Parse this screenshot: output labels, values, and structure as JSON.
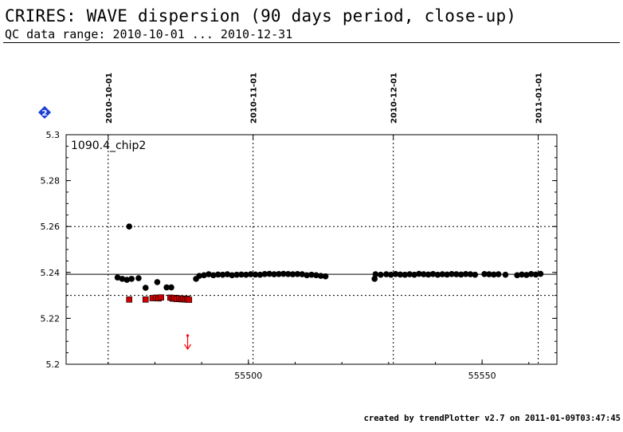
{
  "header": {
    "title": "CRIRES: WAVE dispersion (90 days period, close-up)",
    "subtitle": "QC data range: 2010-10-01 ... 2010-12-31"
  },
  "footer": {
    "text": "created by trendPlotter v2.7 on 2011-01-09T03:47:45"
  },
  "legend_marker": {
    "label": "2",
    "color": "#1a3fd6"
  },
  "chart_data": {
    "type": "scatter",
    "panel_label": "1090.4_chip2",
    "xlim": [
      55461,
      55566
    ],
    "ylim": [
      5.2,
      5.3
    ],
    "x_ticks": [
      55500,
      55550
    ],
    "y_ticks": [
      5.2,
      5.22,
      5.24,
      5.26,
      5.28,
      5.3
    ],
    "y_tick_labels": [
      "5.2",
      "5.22",
      "5.24",
      "5.26",
      "5.28",
      "5.3"
    ],
    "date_ticks": [
      {
        "label": "2010-10-01",
        "mjd": 55470
      },
      {
        "label": "2010-11-01",
        "mjd": 55501
      },
      {
        "label": "2010-12-01",
        "mjd": 55531
      },
      {
        "label": "2011-01-01",
        "mjd": 55562
      }
    ],
    "reference_line": 5.2392,
    "dotted_hlines": [
      5.26,
      5.23
    ],
    "grid": "dotted vertical lines at date ticks",
    "colors": {
      "normal": "#000000",
      "flagged": "#cc0000",
      "outlier_arrow": "#ff0000"
    },
    "series": [
      {
        "color": "#000000",
        "points": [
          [
            55472.0,
            5.2378
          ],
          [
            55473.0,
            5.2372
          ],
          [
            55474.0,
            5.2368
          ],
          [
            55474.5,
            5.26
          ],
          [
            55475.0,
            5.2372
          ],
          [
            55476.5,
            5.2375
          ],
          [
            55478.0,
            5.2333
          ],
          [
            55480.5,
            5.2358
          ],
          [
            55482.5,
            5.2335
          ],
          [
            55483.5,
            5.2335
          ],
          [
            55488.8,
            5.2372
          ],
          [
            55489.5,
            5.2385
          ],
          [
            55490.5,
            5.2388
          ],
          [
            55491.5,
            5.2392
          ],
          [
            55492.5,
            5.2388
          ],
          [
            55493.5,
            5.2391
          ],
          [
            55494.5,
            5.239
          ],
          [
            55495.5,
            5.2392
          ],
          [
            55496.5,
            5.2388
          ],
          [
            55497.5,
            5.239
          ],
          [
            55498.5,
            5.2391
          ],
          [
            55499.5,
            5.239
          ],
          [
            55500.5,
            5.2392
          ],
          [
            55501.5,
            5.2391
          ],
          [
            55502.5,
            5.239
          ],
          [
            55503.5,
            5.2393
          ],
          [
            55504.5,
            5.2394
          ],
          [
            55505.5,
            5.2392
          ],
          [
            55506.5,
            5.2393
          ],
          [
            55507.5,
            5.2394
          ],
          [
            55508.5,
            5.2393
          ],
          [
            55509.5,
            5.2392
          ],
          [
            55510.5,
            5.2393
          ],
          [
            55511.5,
            5.2392
          ],
          [
            55512.5,
            5.2388
          ],
          [
            55513.5,
            5.239
          ],
          [
            55514.5,
            5.2388
          ],
          [
            55515.5,
            5.2385
          ],
          [
            55516.5,
            5.2383
          ],
          [
            55527.0,
            5.2372
          ],
          [
            55527.2,
            5.2392
          ],
          [
            55528.3,
            5.239
          ],
          [
            55529.5,
            5.2392
          ],
          [
            55530.5,
            5.239
          ],
          [
            55531.5,
            5.2393
          ],
          [
            55532.5,
            5.2391
          ],
          [
            55533.5,
            5.239
          ],
          [
            55534.5,
            5.2392
          ],
          [
            55535.5,
            5.239
          ],
          [
            55536.5,
            5.2394
          ],
          [
            55537.5,
            5.2392
          ],
          [
            55538.5,
            5.2391
          ],
          [
            55539.5,
            5.2393
          ],
          [
            55540.5,
            5.239
          ],
          [
            55541.5,
            5.2392
          ],
          [
            55542.5,
            5.2391
          ],
          [
            55543.5,
            5.2393
          ],
          [
            55544.5,
            5.2392
          ],
          [
            55545.5,
            5.2391
          ],
          [
            55546.5,
            5.2393
          ],
          [
            55547.5,
            5.2392
          ],
          [
            55548.5,
            5.239
          ],
          [
            55550.5,
            5.2393
          ],
          [
            55551.5,
            5.2392
          ],
          [
            55552.5,
            5.2391
          ],
          [
            55553.5,
            5.2392
          ],
          [
            55555.0,
            5.239
          ],
          [
            55557.5,
            5.2388
          ],
          [
            55558.5,
            5.2391
          ],
          [
            55559.5,
            5.2389
          ],
          [
            55560.5,
            5.2393
          ],
          [
            55561.5,
            5.2391
          ],
          [
            55562.5,
            5.2394
          ]
        ]
      },
      {
        "color": "#cc0000",
        "points": [
          [
            55474.5,
            5.2282
          ],
          [
            55478.0,
            5.2282
          ],
          [
            55479.5,
            5.2288
          ],
          [
            55480.2,
            5.229
          ],
          [
            55480.8,
            5.2287
          ],
          [
            55481.3,
            5.2291
          ],
          [
            55483.3,
            5.229
          ],
          [
            55483.8,
            5.2286
          ],
          [
            55484.2,
            5.2289
          ],
          [
            55484.7,
            5.2284
          ],
          [
            55485.2,
            5.2287
          ],
          [
            55485.7,
            5.2283
          ],
          [
            55486.1,
            5.2286
          ],
          [
            55486.5,
            5.2282
          ],
          [
            55486.9,
            5.2285
          ],
          [
            55487.3,
            5.2281
          ]
        ]
      }
    ],
    "outlier_arrow": {
      "x": 55487.0
    }
  }
}
